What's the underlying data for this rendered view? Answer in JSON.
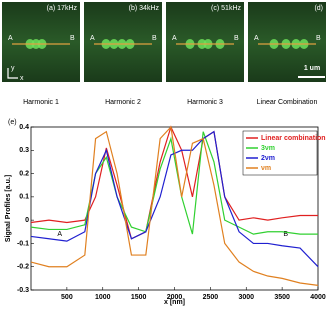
{
  "panels": [
    {
      "label": "(a) 17kHz",
      "caption": "Harmonic 1",
      "a": "A",
      "b": "B"
    },
    {
      "label": "(b) 34kHz",
      "caption": "Harmonic 2",
      "a": "A",
      "b": "B"
    },
    {
      "label": "(c) 51kHz",
      "caption": "Harmonic 3",
      "a": "A",
      "b": "B"
    },
    {
      "label": "(d)",
      "caption": "Linear Combination",
      "a": "A",
      "b": "B"
    }
  ],
  "axes_y": "y",
  "axes_x": "x",
  "scale_bar": "1 um",
  "chart_data": {
    "type": "line",
    "panel_label": "(e)",
    "x_label": "x [nm]",
    "y_label": "Signal Profiles [a.u.]",
    "annotations": [
      "A",
      "B"
    ],
    "x": [
      0,
      250,
      500,
      750,
      900,
      1050,
      1200,
      1400,
      1600,
      1800,
      1950,
      2100,
      2250,
      2400,
      2550,
      2700,
      2900,
      3100,
      3300,
      3500,
      3750,
      4000
    ],
    "series": [
      {
        "name": "Linear combination",
        "color": "#e02020",
        "values": [
          -0.01,
          0,
          -0.01,
          0,
          0.1,
          0.31,
          0.15,
          -0.08,
          -0.05,
          0.25,
          0.4,
          0.3,
          0.1,
          0.35,
          0.38,
          0.1,
          0.0,
          0.01,
          0.0,
          0.01,
          0.02,
          0.02
        ]
      },
      {
        "name": "3νm",
        "color": "#30d030",
        "values": [
          -0.03,
          -0.04,
          -0.04,
          -0.02,
          0.2,
          0.27,
          0.1,
          -0.03,
          -0.05,
          0.22,
          0.35,
          0.1,
          -0.06,
          0.38,
          0.25,
          0.0,
          -0.03,
          -0.06,
          -0.05,
          -0.05,
          -0.06,
          -0.06
        ]
      },
      {
        "name": "2νm",
        "color": "#2020d0",
        "values": [
          -0.07,
          -0.08,
          -0.09,
          -0.05,
          0.2,
          0.3,
          0.1,
          -0.08,
          -0.05,
          0.1,
          0.28,
          0.3,
          0.3,
          0.35,
          0.38,
          0.1,
          -0.05,
          -0.1,
          -0.1,
          -0.11,
          -0.12,
          -0.2
        ]
      },
      {
        "name": "νm",
        "color": "#e08020",
        "values": [
          -0.18,
          -0.2,
          -0.2,
          -0.15,
          0.35,
          0.38,
          0.2,
          -0.15,
          -0.15,
          0.35,
          0.4,
          0.1,
          0.33,
          0.35,
          0.15,
          -0.1,
          -0.18,
          -0.22,
          -0.24,
          -0.25,
          -0.27,
          -0.28
        ]
      }
    ],
    "xlim": [
      0,
      4000
    ],
    "xticks": [
      500,
      1000,
      1500,
      2000,
      2500,
      3000,
      3500,
      4000
    ],
    "ylim": [
      -0.3,
      0.4
    ],
    "yticks": [
      -0.3,
      -0.2,
      -0.1,
      0,
      0.1,
      0.2,
      0.3,
      0.4
    ]
  }
}
